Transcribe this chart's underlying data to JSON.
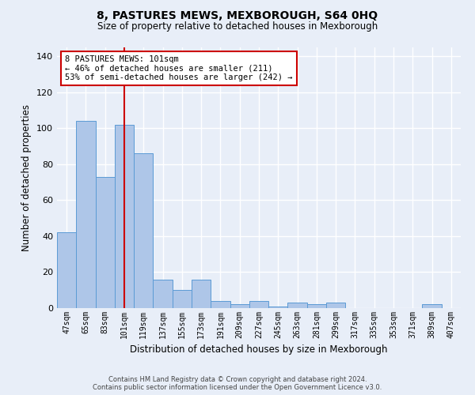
{
  "title": "8, PASTURES MEWS, MEXBOROUGH, S64 0HQ",
  "subtitle": "Size of property relative to detached houses in Mexborough",
  "xlabel": "Distribution of detached houses by size in Mexborough",
  "ylabel": "Number of detached properties",
  "footer_line1": "Contains HM Land Registry data © Crown copyright and database right 2024.",
  "footer_line2": "Contains public sector information licensed under the Open Government Licence v3.0.",
  "bar_labels": [
    "47sqm",
    "65sqm",
    "83sqm",
    "101sqm",
    "119sqm",
    "137sqm",
    "155sqm",
    "173sqm",
    "191sqm",
    "209sqm",
    "227sqm",
    "245sqm",
    "263sqm",
    "281sqm",
    "299sqm",
    "317sqm",
    "335sqm",
    "353sqm",
    "371sqm",
    "389sqm",
    "407sqm"
  ],
  "bar_values": [
    42,
    104,
    73,
    102,
    86,
    16,
    10,
    16,
    4,
    2,
    4,
    1,
    3,
    2,
    3,
    0,
    0,
    0,
    0,
    2,
    0
  ],
  "bar_color": "#aec6e8",
  "bar_edge_color": "#5b9bd5",
  "background_color": "#e8eef8",
  "grid_color": "#ffffff",
  "ylim": [
    0,
    145
  ],
  "yticks": [
    0,
    20,
    40,
    60,
    80,
    100,
    120,
    140
  ],
  "redline_x": 3,
  "annotation_text_line1": "8 PASTURES MEWS: 101sqm",
  "annotation_text_line2": "← 46% of detached houses are smaller (211)",
  "annotation_text_line3": "53% of semi-detached houses are larger (242) →",
  "annotation_box_color": "#ffffff",
  "annotation_box_edgecolor": "#cc0000",
  "red_line_color": "#cc0000"
}
